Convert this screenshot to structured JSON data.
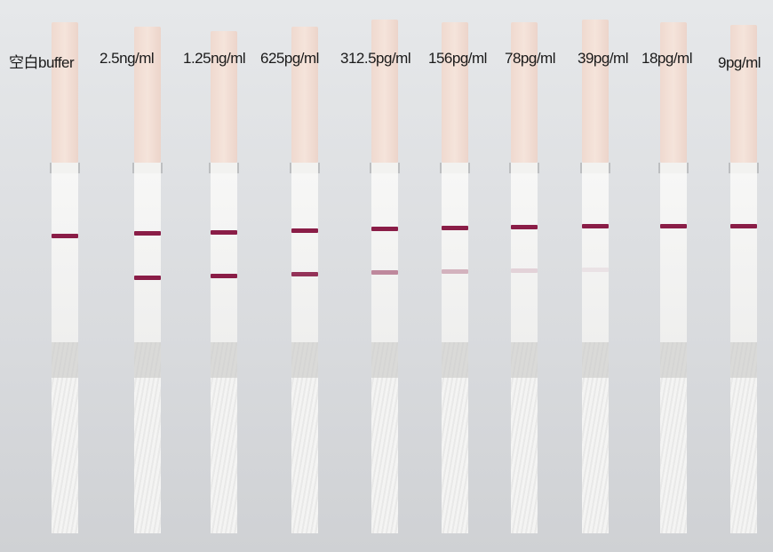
{
  "strips": [
    {
      "label": "空白buffer",
      "test_line_intensity": 0.0
    },
    {
      "label": "2.5ng/ml",
      "test_line_intensity": 1.0
    },
    {
      "label": "1.25ng/ml",
      "test_line_intensity": 1.0
    },
    {
      "label": "625pg/ml",
      "test_line_intensity": 0.9
    },
    {
      "label": "312.5pg/ml",
      "test_line_intensity": 0.5
    },
    {
      "label": "156pg/ml",
      "test_line_intensity": 0.3
    },
    {
      "label": "78pg/ml",
      "test_line_intensity": 0.15
    },
    {
      "label": "39pg/ml",
      "test_line_intensity": 0.07
    },
    {
      "label": "18pg/ml",
      "test_line_intensity": 0.0
    },
    {
      "label": "9pg/ml",
      "test_line_intensity": 0.0
    }
  ],
  "colors": {
    "line": "#8a1d47",
    "pad": "#f2ddd3"
  }
}
